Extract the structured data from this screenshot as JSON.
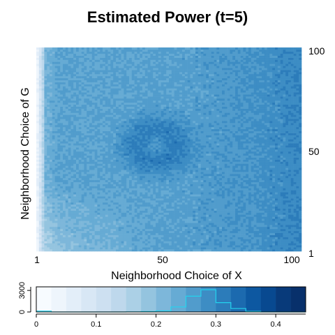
{
  "chart_data": [
    {
      "type": "heatmap",
      "title": "Estimated Power (t=5)",
      "xlabel": "Neighborhood Choice of X",
      "ylabel": "Neighborhood Choice of G",
      "x_range": [
        1,
        100
      ],
      "y_range": [
        1,
        100
      ],
      "x_ticks": [
        "1",
        "50",
        "100"
      ],
      "y_ticks": [
        "1",
        "50",
        "100"
      ],
      "y_axis_side": "right",
      "grid": false,
      "value_range": [
        0.0,
        0.45
      ],
      "colormap": "Blues",
      "description_values": {
        "left_edge_x_1_to_3": 0.05,
        "lower_left_region": 0.15,
        "typical_interior": 0.25,
        "central_ring_peak": 0.3,
        "right_edge": 0.33
      }
    },
    {
      "type": "bar",
      "subtype": "color-key-with-histogram",
      "x_ticks": [
        "0",
        "0.1",
        "0.2",
        "0.3",
        "0.4"
      ],
      "y_ticks": [
        "0",
        "3000"
      ],
      "bins": [
        0.0,
        0.025,
        0.05,
        0.075,
        0.1,
        0.125,
        0.15,
        0.175,
        0.2,
        0.225,
        0.25,
        0.275,
        0.3,
        0.325,
        0.35,
        0.375,
        0.4,
        0.425,
        0.45
      ],
      "counts": [
        120,
        0,
        0,
        0,
        0,
        0,
        20,
        60,
        150,
        700,
        2200,
        3100,
        1300,
        480,
        90,
        0,
        0,
        0
      ],
      "ylim": [
        0,
        3500
      ],
      "colors": [
        "#f7fbff",
        "#eef5fc",
        "#e3eef9",
        "#d8e7f5",
        "#cde0f1",
        "#bed8ec",
        "#abd0e6",
        "#94c4df",
        "#7db7da",
        "#66abd4",
        "#519ccc",
        "#3d8dc4",
        "#2c7cba",
        "#1c6aaf",
        "#0d58a1",
        "#084990",
        "#083a7a",
        "#08306b"
      ],
      "histogram_color": "#22d3ee"
    }
  ]
}
